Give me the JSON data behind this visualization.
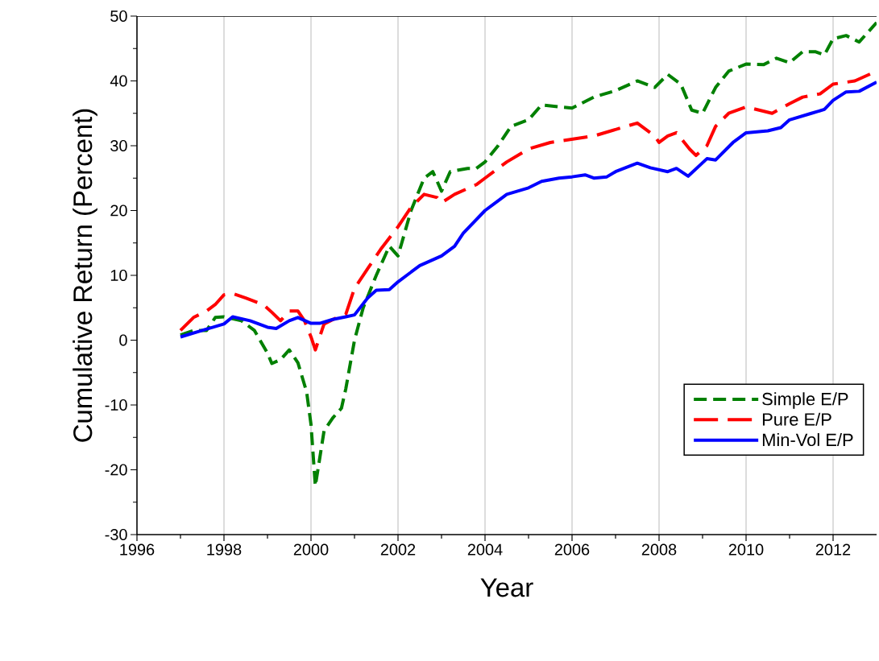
{
  "chart_data": {
    "type": "line",
    "xlabel": "Year",
    "ylabel": "Cumulative Return (Percent)",
    "xlim": [
      1996,
      2013
    ],
    "xticks": [
      1996,
      1998,
      2000,
      2002,
      2004,
      2006,
      2008,
      2010,
      2012
    ],
    "ylim": [
      -30,
      50
    ],
    "yticks": [
      -30,
      -20,
      -10,
      0,
      10,
      20,
      30,
      40,
      50
    ],
    "grid": "x",
    "legend": "bottom right",
    "marker": "none",
    "series": [
      {
        "name": "Simple E/P",
        "color": "#008000",
        "line_style": "dashed",
        "x": [
          1997.0,
          1997.3,
          1997.6,
          1997.8,
          1998.0,
          1998.4,
          1998.7,
          1999.0,
          1999.1,
          1999.3,
          1999.5,
          1999.7,
          1999.9,
          2000.0,
          2000.1,
          2000.3,
          2000.5,
          2000.7,
          2000.8,
          2001.0,
          2001.2,
          2001.5,
          2001.8,
          2002.0,
          2002.3,
          2002.6,
          2002.8,
          2003.0,
          2003.2,
          2003.6,
          2003.8,
          2004.0,
          2004.3,
          2004.6,
          2005.0,
          2005.3,
          2005.7,
          2006.0,
          2006.5,
          2007.0,
          2007.5,
          2007.9,
          2008.2,
          2008.5,
          2008.75,
          2009.0,
          2009.3,
          2009.6,
          2010.0,
          2010.4,
          2010.7,
          2011.0,
          2011.3,
          2011.6,
          2011.8,
          2012.0,
          2012.3,
          2012.6,
          2013.0
        ],
        "values": [
          0.8,
          1.5,
          1.5,
          3.5,
          3.6,
          3.0,
          1.5,
          -2.0,
          -3.6,
          -3.0,
          -1.5,
          -3.5,
          -8.0,
          -13,
          -22.5,
          -14,
          -12.0,
          -10.5,
          -7.5,
          0.0,
          5,
          10,
          14.5,
          13,
          20,
          25,
          26,
          23,
          26,
          26.5,
          26.5,
          27.5,
          30,
          33,
          34,
          36.3,
          36.0,
          35.8,
          37.5,
          38.5,
          40,
          39,
          41,
          39.5,
          35.5,
          35.0,
          39,
          41.5,
          42.6,
          42.5,
          43.5,
          42.8,
          44.5,
          44.5,
          44,
          46.5,
          47,
          46,
          49
        ]
      },
      {
        "name": "Pure E/P",
        "color": "#ff0000",
        "line_style": "dashed",
        "x": [
          1997.0,
          1997.3,
          1997.6,
          1997.8,
          1998.0,
          1998.2,
          1998.5,
          1998.9,
          1999.1,
          1999.3,
          1999.5,
          1999.7,
          1999.85,
          2000.0,
          2000.1,
          2000.3,
          2000.6,
          2000.8,
          2001.0,
          2001.3,
          2001.6,
          2002.0,
          2002.3,
          2002.6,
          2002.9,
          2003.0,
          2003.3,
          2003.8,
          2004.0,
          2004.5,
          2005.0,
          2005.5,
          2006.0,
          2006.5,
          2007.0,
          2007.5,
          2007.9,
          2008.0,
          2008.2,
          2008.4,
          2008.7,
          2008.85,
          2009.1,
          2009.3,
          2009.6,
          2010.0,
          2010.3,
          2010.6,
          2011.0,
          2011.3,
          2011.7,
          2012.0,
          2012.5,
          2013.0
        ],
        "values": [
          1.5,
          3.5,
          4.5,
          5.5,
          7.0,
          7.2,
          6.5,
          5.5,
          4.3,
          3.0,
          4.5,
          4.5,
          3.0,
          0.5,
          -1.5,
          2.5,
          3.5,
          4.0,
          8.0,
          11.0,
          14,
          17.5,
          20.5,
          22.5,
          22.0,
          21.2,
          22.5,
          24,
          25,
          27.5,
          29.5,
          30.5,
          31,
          31.5,
          32.5,
          33.5,
          31.5,
          30.5,
          31.5,
          32.0,
          29.5,
          28.5,
          30.0,
          33.0,
          35.0,
          36,
          35.5,
          35,
          36.5,
          37.5,
          38.0,
          39.5,
          40.0,
          41.5
        ]
      },
      {
        "name": "Min-Vol E/P",
        "color": "#0000ff",
        "line_style": "solid",
        "x": [
          1997.0,
          1997.5,
          1998.0,
          1998.2,
          1998.6,
          1999.0,
          1999.2,
          1999.5,
          1999.7,
          2000.0,
          2000.2,
          2000.5,
          2000.8,
          2001.0,
          2001.3,
          2001.5,
          2001.8,
          2002.0,
          2002.5,
          2003.0,
          2003.3,
          2003.5,
          2004.0,
          2004.5,
          2005.0,
          2005.3,
          2005.7,
          2006.0,
          2006.3,
          2006.5,
          2006.8,
          2007.0,
          2007.5,
          2007.8,
          2008.0,
          2008.2,
          2008.4,
          2008.67,
          2009.1,
          2009.3,
          2009.7,
          2010.0,
          2010.5,
          2010.8,
          2011.0,
          2011.5,
          2011.8,
          2012.0,
          2012.3,
          2012.6,
          2013.0
        ],
        "values": [
          0.5,
          1.5,
          2.5,
          3.6,
          3.0,
          2.0,
          1.8,
          3.0,
          3.5,
          2.6,
          2.6,
          3.2,
          3.6,
          3.9,
          6.5,
          7.7,
          7.8,
          9.0,
          11.5,
          13.0,
          14.5,
          16.5,
          20.0,
          22.5,
          23.5,
          24.5,
          25.0,
          25.2,
          25.5,
          25.0,
          25.2,
          26.0,
          27.3,
          26.6,
          26.3,
          26.0,
          26.5,
          25.3,
          28.0,
          27.8,
          30.5,
          32.0,
          32.3,
          32.8,
          34.0,
          35.0,
          35.6,
          37.0,
          38.3,
          38.4,
          39.8
        ]
      }
    ]
  }
}
